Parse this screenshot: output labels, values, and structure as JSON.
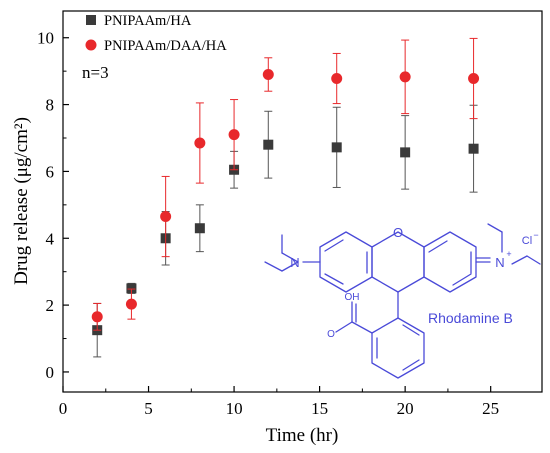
{
  "chart_data": {
    "type": "scatter",
    "xlabel": "Time (hr)",
    "ylabel": "Drug release  (μg/cm²)",
    "xlim": [
      0,
      28
    ],
    "ylim": [
      -0.6,
      10.8
    ],
    "xticks": [
      0,
      5,
      10,
      15,
      20,
      25
    ],
    "yticks": [
      0,
      2,
      4,
      6,
      8,
      10
    ],
    "grid": false,
    "legend": "top-left",
    "series": [
      {
        "name": "PNIPAAm/HA",
        "marker": "square",
        "color": "#3a3a3a",
        "errorbar_color": "#555555",
        "x": [
          2,
          4,
          6,
          8,
          10,
          12,
          16,
          20,
          24
        ],
        "y": [
          1.25,
          2.5,
          4.0,
          4.3,
          6.05,
          6.8,
          6.72,
          6.57,
          6.68
        ],
        "err": [
          0.8,
          0.15,
          0.8,
          0.7,
          0.55,
          1.0,
          1.2,
          1.1,
          1.3
        ]
      },
      {
        "name": "PNIPAAm/DAA/HA",
        "marker": "circle",
        "color": "#e8282b",
        "errorbar_color": "#e8282b",
        "x": [
          2,
          4,
          6,
          8,
          10,
          12,
          16,
          20,
          24
        ],
        "y": [
          1.65,
          2.03,
          4.65,
          6.85,
          7.1,
          8.9,
          8.78,
          8.83,
          8.78
        ],
        "err": [
          0.4,
          0.45,
          1.2,
          1.2,
          1.05,
          0.5,
          0.75,
          1.1,
          1.2
        ]
      }
    ],
    "annotations": [
      {
        "text": "n=3"
      }
    ]
  },
  "inset": {
    "molecule_name": "Rhodamine B",
    "atom_labels": {
      "n_left": "N",
      "n_right": "N",
      "n_right_charge": "+",
      "o_ring": "O",
      "counterion": "Cl",
      "counterion_charge": "−",
      "acid_oh": "OH",
      "acid_o": "O"
    },
    "color": "#4a4ad8"
  }
}
